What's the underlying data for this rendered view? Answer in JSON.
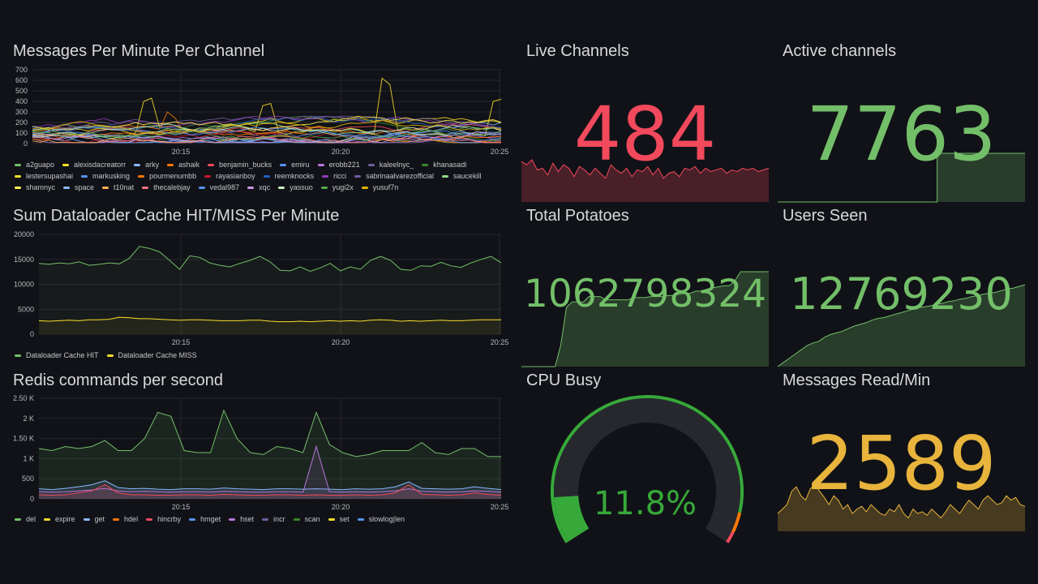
{
  "colors": {
    "red": "#f2495c",
    "green": "#73bf69",
    "yellow": "#fade2a",
    "orange": "#e8b43c",
    "cpu_green": "#37a93a"
  },
  "messages_panel": {
    "title": "Messages Per Minute Per Channel",
    "chart_data": {
      "type": "line",
      "yticks": [
        "700",
        "600",
        "500",
        "400",
        "300",
        "200",
        "100",
        "0"
      ],
      "ylim": [
        0,
        700
      ],
      "xticks": [
        "20:15",
        "20:20",
        "20:25"
      ],
      "legend": [
        {
          "name": "a2guapo",
          "color": "#73bf69"
        },
        {
          "name": "alexisdacreatorr",
          "color": "#fade2a"
        },
        {
          "name": "arky",
          "color": "#8ab8ff"
        },
        {
          "name": "ashaik",
          "color": "#ff780a"
        },
        {
          "name": "benjamin_bucks",
          "color": "#f2495c"
        },
        {
          "name": "emiru",
          "color": "#5794f2"
        },
        {
          "name": "erobb221",
          "color": "#b877d9"
        },
        {
          "name": "kaleelnyc_",
          "color": "#705da0"
        },
        {
          "name": "khanasadi",
          "color": "#37872d"
        },
        {
          "name": "lestersupashai",
          "color": "#fade2a"
        },
        {
          "name": "markusking",
          "color": "#5794f2"
        },
        {
          "name": "pourmenumbb",
          "color": "#ff780a"
        },
        {
          "name": "rayasianboy",
          "color": "#c4162a"
        },
        {
          "name": "reemknocks",
          "color": "#1f60c4"
        },
        {
          "name": "ricci",
          "color": "#8f3bb8"
        },
        {
          "name": "sabrinaalvarezofficial",
          "color": "#705da0"
        },
        {
          "name": "saucekill",
          "color": "#96d98d"
        },
        {
          "name": "shamnyc",
          "color": "#ffee52"
        },
        {
          "name": "space",
          "color": "#8ab8ff"
        },
        {
          "name": "t10nat",
          "color": "#ffb357"
        },
        {
          "name": "thecalebjay",
          "color": "#ff7383"
        },
        {
          "name": "vedal987",
          "color": "#5794f2"
        },
        {
          "name": "xqc",
          "color": "#ca95e5"
        },
        {
          "name": "yassuo",
          "color": "#c8f2c2"
        },
        {
          "name": "yugi2x",
          "color": "#56a64b"
        },
        {
          "name": "yusuf7n",
          "color": "#e0b400"
        }
      ]
    }
  },
  "cache_panel": {
    "title": "Sum Dataloader Cache HIT/MISS Per Minute",
    "chart_data": {
      "type": "area",
      "yticks": [
        "20000",
        "15000",
        "10000",
        "5000",
        "0"
      ],
      "ylim": [
        0,
        20000
      ],
      "xticks": [
        "20:15",
        "20:20",
        "20:25"
      ],
      "series": [
        {
          "name": "Dataloader Cache HIT",
          "color": "#73bf69",
          "values": [
            14200,
            14000,
            14300,
            14100,
            14500,
            13800,
            14000,
            14300,
            14100,
            15200,
            17600,
            17200,
            16500,
            14800,
            13000,
            15700,
            15400,
            14300,
            13800,
            13500,
            14200,
            14800,
            15600,
            14500,
            12800,
            12700,
            13500,
            12600,
            13300,
            14200,
            12700,
            13500,
            13000,
            14800,
            15600,
            14800,
            13000,
            12800,
            13700,
            13600,
            14400,
            13700,
            13400,
            14300,
            15000,
            15600,
            14300
          ]
        },
        {
          "name": "Dataloader Cache MISS",
          "color": "#fade2a",
          "values": [
            2700,
            2600,
            2700,
            2800,
            2700,
            2900,
            2900,
            3000,
            3400,
            3300,
            3100,
            3100,
            3000,
            2900,
            2800,
            2900,
            2900,
            2800,
            2700,
            2700,
            2700,
            2800,
            2800,
            2600,
            2500,
            2500,
            2600,
            2500,
            2600,
            2700,
            2600,
            2700,
            2600,
            2800,
            2900,
            2800,
            2600,
            2700,
            2600,
            2700,
            2800,
            2700,
            2700,
            2800,
            2900,
            2900,
            2900
          ]
        }
      ]
    }
  },
  "redis_panel": {
    "title": "Redis commands per second",
    "chart_data": {
      "type": "area",
      "yticks": [
        "2.50 K",
        "2 K",
        "1.50 K",
        "1 K",
        "500",
        "0"
      ],
      "ylim": [
        0,
        2500
      ],
      "xticks": [
        "20:15",
        "20:20",
        "20:25"
      ],
      "legend": [
        {
          "name": "del",
          "color": "#73bf69"
        },
        {
          "name": "expire",
          "color": "#fade2a"
        },
        {
          "name": "get",
          "color": "#8ab8ff"
        },
        {
          "name": "hdel",
          "color": "#ff780a"
        },
        {
          "name": "hincrby",
          "color": "#f2495c"
        },
        {
          "name": "hmget",
          "color": "#5794f2"
        },
        {
          "name": "hset",
          "color": "#b877d9"
        },
        {
          "name": "incr",
          "color": "#705da0"
        },
        {
          "name": "scan",
          "color": "#37872d"
        },
        {
          "name": "set",
          "color": "#fade2a"
        },
        {
          "name": "slowlog|len",
          "color": "#5794f2"
        }
      ],
      "series": [
        {
          "name": "del",
          "color": "#73bf69",
          "values": [
            1250,
            1200,
            1300,
            1250,
            1300,
            1450,
            1200,
            1200,
            1500,
            2150,
            2050,
            1200,
            1150,
            1150,
            2200,
            1500,
            1150,
            1100,
            1300,
            1250,
            1150,
            2150,
            1350,
            1150,
            1050,
            1100,
            1200,
            1200,
            1200,
            1400,
            1150,
            1100,
            1250,
            1250,
            1050,
            1050
          ]
        },
        {
          "name": "get",
          "color": "#8ab8ff",
          "values": [
            250,
            230,
            260,
            300,
            350,
            450,
            280,
            250,
            260,
            240,
            230,
            250,
            250,
            240,
            270,
            250,
            240,
            230,
            250,
            250,
            240,
            250,
            240,
            230,
            250,
            240,
            250,
            300,
            420,
            260,
            250,
            240,
            250,
            300,
            260,
            230
          ]
        },
        {
          "name": "hset",
          "color": "#b877d9",
          "values": [
            180,
            170,
            180,
            200,
            220,
            260,
            200,
            180,
            190,
            180,
            170,
            180,
            180,
            170,
            190,
            180,
            170,
            170,
            180,
            180,
            170,
            1300,
            180,
            170,
            180,
            170,
            180,
            200,
            250,
            190,
            180,
            170,
            180,
            200,
            190,
            170
          ]
        },
        {
          "name": "hincrby",
          "color": "#f2495c",
          "values": [
            100,
            90,
            100,
            150,
            200,
            350,
            150,
            100,
            100,
            90,
            90,
            100,
            100,
            90,
            110,
            100,
            90,
            90,
            100,
            100,
            90,
            100,
            90,
            90,
            100,
            90,
            100,
            150,
            350,
            110,
            100,
            90,
            100,
            150,
            110,
            90
          ]
        }
      ]
    }
  },
  "live_channels": {
    "title": "Live Channels",
    "value": "484",
    "spark": [
      120,
      110,
      125,
      95,
      100,
      80,
      115,
      90,
      110,
      100,
      75,
      105,
      95,
      80,
      100,
      85,
      70,
      110,
      95,
      85,
      100,
      75,
      95,
      90,
      105,
      80,
      100,
      70,
      85,
      90,
      75,
      100,
      95,
      105,
      85,
      100,
      90,
      95,
      100,
      85,
      95,
      90,
      100,
      95,
      100,
      90,
      95,
      100
    ]
  },
  "active_channels": {
    "title": "Active channels",
    "value": "7763",
    "spark": [
      0,
      0,
      0,
      0,
      0,
      0,
      0,
      0,
      0,
      0,
      0,
      0,
      0,
      0,
      0,
      0,
      0,
      0,
      0,
      0,
      0,
      0,
      0,
      0,
      0,
      0,
      0,
      0,
      0,
      1,
      1,
      1,
      1,
      1,
      1,
      1,
      1,
      1,
      1,
      1,
      1,
      1,
      1,
      1,
      1,
      1
    ]
  },
  "total_potatoes": {
    "title": "Total Potatoes",
    "value": "1062798324",
    "spark": [
      0,
      0,
      0,
      0,
      0,
      0,
      0,
      0.2,
      0.55,
      0.6,
      0.6,
      0.6,
      0.65,
      0.65,
      0.65,
      0.62,
      0.62,
      0.62,
      0.62,
      0.62,
      0.64,
      0.64,
      0.64,
      0.65,
      0.65,
      0.65,
      0.66,
      0.66,
      0.67,
      0.68,
      0.68,
      0.7,
      0.7,
      0.72,
      0.73,
      0.74,
      0.75,
      0.75,
      0.8,
      0.88,
      0.88,
      0.88,
      0.88,
      0.88,
      0.88
    ]
  },
  "users_seen": {
    "title": "Users Seen",
    "value": "12769230",
    "spark": [
      0,
      0.05,
      0.1,
      0.15,
      0.2,
      0.25,
      0.28,
      0.3,
      0.35,
      0.38,
      0.4,
      0.42,
      0.45,
      0.48,
      0.5,
      0.52,
      0.55,
      0.57,
      0.58,
      0.6,
      0.62,
      0.64,
      0.66,
      0.68,
      0.7,
      0.71,
      0.72,
      0.74,
      0.75,
      0.77,
      0.78,
      0.8,
      0.81,
      0.83,
      0.84,
      0.86,
      0.87,
      0.88,
      0.9,
      0.92,
      0.93,
      0.95,
      0.97
    ]
  },
  "cpu_busy": {
    "title": "CPU Busy",
    "value": "11.8%",
    "percent": 11.8
  },
  "messages_read": {
    "title": "Messages Read/Min",
    "value": "2589",
    "spark": [
      20,
      25,
      30,
      45,
      50,
      40,
      35,
      48,
      52,
      45,
      38,
      30,
      40,
      35,
      25,
      30,
      20,
      25,
      28,
      22,
      30,
      25,
      20,
      18,
      25,
      22,
      30,
      20,
      15,
      25,
      20,
      22,
      18,
      25,
      20,
      15,
      22,
      30,
      25,
      20,
      28,
      35,
      30,
      25,
      35,
      40,
      35,
      30,
      32,
      40,
      35,
      38,
      30,
      28
    ]
  }
}
